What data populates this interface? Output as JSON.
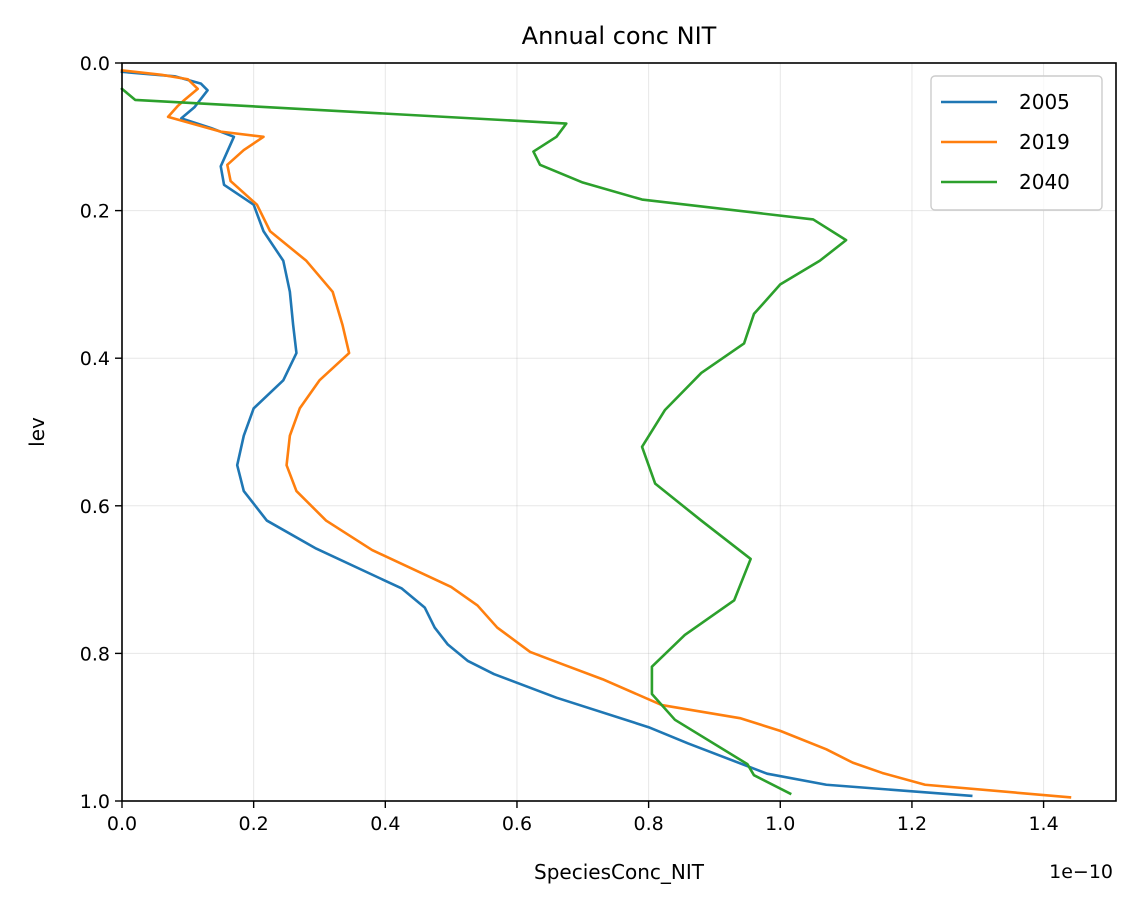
{
  "chart_data": {
    "type": "line",
    "title": "Annual conc NIT",
    "xlabel": "SpeciesConc_NIT",
    "ylabel": "lev",
    "x_offset_label": "1e−10",
    "xlim": [
      0.0,
      1.51
    ],
    "ylim": [
      1.0,
      0.0
    ],
    "x_ticks": [
      0.0,
      0.2,
      0.4,
      0.6,
      0.8,
      1.0,
      1.2,
      1.4
    ],
    "x_tick_labels": [
      "0.0",
      "0.2",
      "0.4",
      "0.6",
      "0.8",
      "1.0",
      "1.2",
      "1.4"
    ],
    "y_ticks": [
      0.0,
      0.2,
      0.4,
      0.6,
      0.8,
      1.0
    ],
    "y_tick_labels": [
      "0.0",
      "0.2",
      "0.4",
      "0.6",
      "0.8",
      "1.0"
    ],
    "grid": true,
    "legend_position": "top-right",
    "series": [
      {
        "name": "2005",
        "color": "#1f77b4",
        "points": [
          [
            0.0,
            0.012
          ],
          [
            0.08,
            0.018
          ],
          [
            0.12,
            0.028
          ],
          [
            0.13,
            0.037
          ],
          [
            0.11,
            0.06
          ],
          [
            0.09,
            0.075
          ],
          [
            0.135,
            0.088
          ],
          [
            0.17,
            0.1
          ],
          [
            0.16,
            0.12
          ],
          [
            0.15,
            0.14
          ],
          [
            0.155,
            0.165
          ],
          [
            0.2,
            0.192
          ],
          [
            0.215,
            0.228
          ],
          [
            0.245,
            0.268
          ],
          [
            0.255,
            0.31
          ],
          [
            0.26,
            0.355
          ],
          [
            0.265,
            0.393
          ],
          [
            0.245,
            0.43
          ],
          [
            0.2,
            0.468
          ],
          [
            0.185,
            0.505
          ],
          [
            0.175,
            0.545
          ],
          [
            0.185,
            0.58
          ],
          [
            0.22,
            0.62
          ],
          [
            0.295,
            0.658
          ],
          [
            0.425,
            0.712
          ],
          [
            0.46,
            0.738
          ],
          [
            0.475,
            0.765
          ],
          [
            0.495,
            0.788
          ],
          [
            0.525,
            0.81
          ],
          [
            0.565,
            0.828
          ],
          [
            0.66,
            0.86
          ],
          [
            0.8,
            0.9
          ],
          [
            0.86,
            0.922
          ],
          [
            0.98,
            0.963
          ],
          [
            1.07,
            0.978
          ],
          [
            1.29,
            0.993
          ]
        ]
      },
      {
        "name": "2019",
        "color": "#ff7f0e",
        "points": [
          [
            0.0,
            0.01
          ],
          [
            0.06,
            0.016
          ],
          [
            0.1,
            0.022
          ],
          [
            0.115,
            0.035
          ],
          [
            0.095,
            0.05
          ],
          [
            0.085,
            0.058
          ],
          [
            0.07,
            0.073
          ],
          [
            0.15,
            0.093
          ],
          [
            0.215,
            0.1
          ],
          [
            0.185,
            0.118
          ],
          [
            0.16,
            0.138
          ],
          [
            0.165,
            0.16
          ],
          [
            0.205,
            0.192
          ],
          [
            0.225,
            0.228
          ],
          [
            0.28,
            0.268
          ],
          [
            0.32,
            0.31
          ],
          [
            0.335,
            0.355
          ],
          [
            0.345,
            0.393
          ],
          [
            0.3,
            0.43
          ],
          [
            0.27,
            0.468
          ],
          [
            0.255,
            0.505
          ],
          [
            0.25,
            0.545
          ],
          [
            0.265,
            0.58
          ],
          [
            0.31,
            0.62
          ],
          [
            0.38,
            0.66
          ],
          [
            0.5,
            0.71
          ],
          [
            0.54,
            0.735
          ],
          [
            0.57,
            0.765
          ],
          [
            0.62,
            0.798
          ],
          [
            0.67,
            0.815
          ],
          [
            0.73,
            0.835
          ],
          [
            0.82,
            0.87
          ],
          [
            0.94,
            0.888
          ],
          [
            1.0,
            0.905
          ],
          [
            1.07,
            0.93
          ],
          [
            1.11,
            0.948
          ],
          [
            1.155,
            0.962
          ],
          [
            1.22,
            0.978
          ],
          [
            1.44,
            0.995
          ]
        ]
      },
      {
        "name": "2040",
        "color": "#2ca02c",
        "points": [
          [
            0.0,
            0.035
          ],
          [
            0.02,
            0.05
          ],
          [
            0.675,
            0.082
          ],
          [
            0.66,
            0.1
          ],
          [
            0.625,
            0.12
          ],
          [
            0.635,
            0.138
          ],
          [
            0.7,
            0.162
          ],
          [
            0.79,
            0.185
          ],
          [
            1.05,
            0.212
          ],
          [
            1.1,
            0.24
          ],
          [
            1.06,
            0.268
          ],
          [
            1.0,
            0.3
          ],
          [
            0.96,
            0.34
          ],
          [
            0.945,
            0.38
          ],
          [
            0.88,
            0.42
          ],
          [
            0.825,
            0.47
          ],
          [
            0.79,
            0.52
          ],
          [
            0.81,
            0.57
          ],
          [
            0.88,
            0.62
          ],
          [
            0.955,
            0.672
          ],
          [
            0.93,
            0.728
          ],
          [
            0.855,
            0.775
          ],
          [
            0.805,
            0.818
          ],
          [
            0.805,
            0.855
          ],
          [
            0.84,
            0.89
          ],
          [
            0.95,
            0.95
          ],
          [
            0.96,
            0.965
          ],
          [
            1.015,
            0.99
          ]
        ]
      }
    ]
  }
}
